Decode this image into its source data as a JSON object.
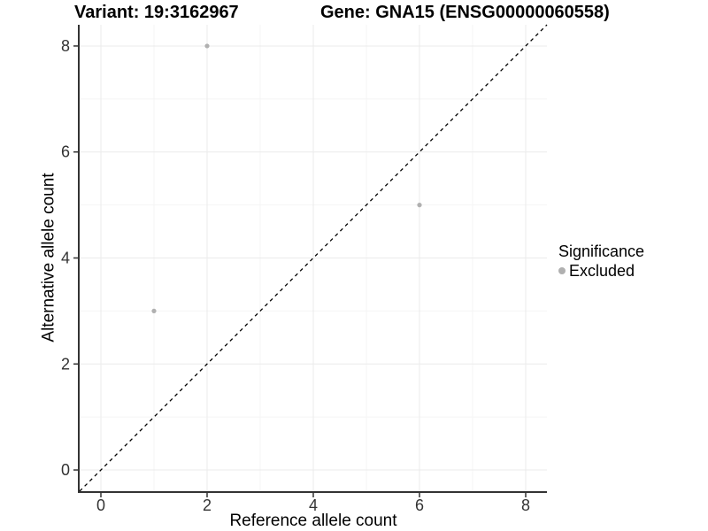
{
  "chart_data": {
    "type": "scatter",
    "title_left": "Variant: 19:3162967",
    "title_right": "Gene: GNA15 (ENSG00000060558)",
    "xlabel": "Reference allele count",
    "ylabel": "Alternative allele count",
    "xlim": [
      -0.4,
      8.4
    ],
    "ylim": [
      -0.4,
      8.4
    ],
    "x_ticks": [
      0,
      2,
      4,
      6,
      8
    ],
    "y_ticks": [
      0,
      2,
      4,
      6,
      8
    ],
    "x_minor_ticks": [
      1,
      3,
      5,
      7
    ],
    "y_minor_ticks": [
      1,
      3,
      5,
      7
    ],
    "grid": true,
    "series": [
      {
        "name": "Excluded",
        "color": "#b0b0b0",
        "points": [
          {
            "x": 2,
            "y": 8
          },
          {
            "x": 6,
            "y": 5
          },
          {
            "x": 1,
            "y": 3
          }
        ]
      }
    ],
    "reference_line": {
      "type": "identity",
      "style": "dashed",
      "color": "#000000"
    },
    "legend": {
      "title": "Significance",
      "position": "right",
      "items": [
        {
          "label": "Excluded",
          "color": "#b0b0b0"
        }
      ]
    },
    "colors": {
      "panel_background": "#ffffff",
      "grid_major": "#ebebeb",
      "grid_minor": "#f4f4f4",
      "axis_line": "#333333",
      "tick_label": "#333333",
      "point": "#b0b0b0"
    }
  }
}
